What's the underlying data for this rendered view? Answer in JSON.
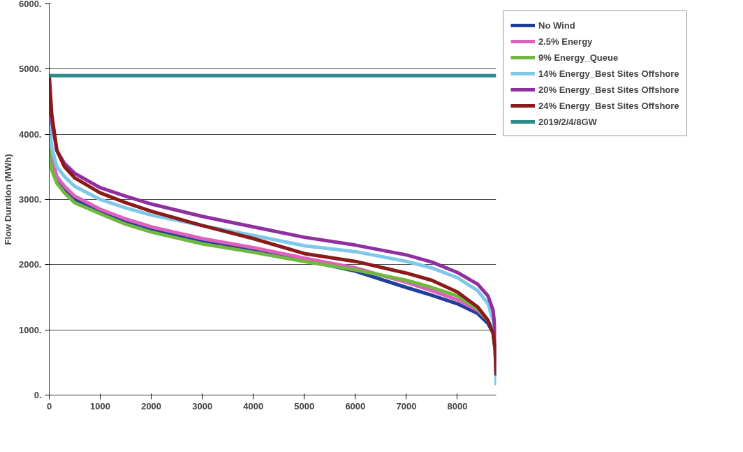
{
  "chart_data": {
    "type": "line",
    "ylabel": "Flow Duration (MWh)",
    "x": [
      0,
      50,
      150,
      300,
      500,
      1000,
      1500,
      2000,
      3000,
      4000,
      5000,
      6000,
      7000,
      7500,
      8000,
      8400,
      8600,
      8700,
      8740,
      8760
    ],
    "series": [
      {
        "name": "No Wind",
        "color": "#1f3f9a",
        "values": [
          4000,
          3600,
          3300,
          3150,
          3000,
          2800,
          2650,
          2530,
          2350,
          2220,
          2070,
          1900,
          1650,
          1530,
          1400,
          1250,
          1100,
          950,
          700,
          300
        ]
      },
      {
        "name": "2.5% Energy",
        "color": "#e060c0",
        "values": [
          4100,
          3650,
          3350,
          3200,
          3050,
          2850,
          2700,
          2580,
          2400,
          2260,
          2100,
          1950,
          1730,
          1600,
          1460,
          1300,
          1150,
          null,
          null,
          null
        ]
      },
      {
        "name": "9% Energy_Queue",
        "color": "#70b840",
        "values": [
          3800,
          3450,
          3250,
          3100,
          2950,
          2780,
          2620,
          2500,
          2320,
          2190,
          2050,
          1920,
          1760,
          1650,
          1520,
          1320,
          1150,
          null,
          null,
          null
        ]
      },
      {
        "name": "14% Energy_Best Sites Offshore",
        "color": "#80c8e8",
        "values": [
          4200,
          3800,
          3500,
          3350,
          3200,
          3000,
          2870,
          2760,
          2600,
          2450,
          2290,
          2200,
          2050,
          1950,
          1800,
          1600,
          1400,
          1150,
          700,
          150
        ]
      },
      {
        "name": "20% Energy_Best Sites Offshore",
        "color": "#9030a0",
        "values": [
          4800,
          4200,
          3750,
          3550,
          3400,
          3180,
          3050,
          2930,
          2740,
          2580,
          2420,
          2300,
          2150,
          2040,
          1880,
          1700,
          1520,
          1300,
          1000,
          500
        ]
      },
      {
        "name": "24% Energy_Best Sites Offshore",
        "color": "#8b1a1a",
        "values": [
          4900,
          4300,
          3750,
          3500,
          3330,
          3100,
          2950,
          2820,
          2600,
          2400,
          2170,
          2050,
          1870,
          1760,
          1580,
          1350,
          1150,
          950,
          700,
          300
        ]
      },
      {
        "name": "2019/2/4/8GW",
        "color": "#2e8b8b",
        "x": [
          0,
          8760
        ],
        "values": [
          4900,
          4900
        ]
      }
    ],
    "xlim": [
      0,
      8760
    ],
    "xticks": [
      0,
      1000,
      2000,
      3000,
      4000,
      5000,
      6000,
      7000,
      8000
    ],
    "ylim": [
      0,
      6000
    ],
    "yticks": [
      {
        "value": 0,
        "label": "0."
      },
      {
        "value": 1000,
        "label": "1000."
      },
      {
        "value": 2000,
        "label": "2000."
      },
      {
        "value": 3000,
        "label": "3000."
      },
      {
        "value": 4000,
        "label": "4000."
      },
      {
        "value": 5000,
        "label": "5000."
      },
      {
        "value": 6000,
        "label": "6000."
      }
    ],
    "grid": "y",
    "legend": "top right",
    "marker": "none",
    "line_style": "solid"
  }
}
